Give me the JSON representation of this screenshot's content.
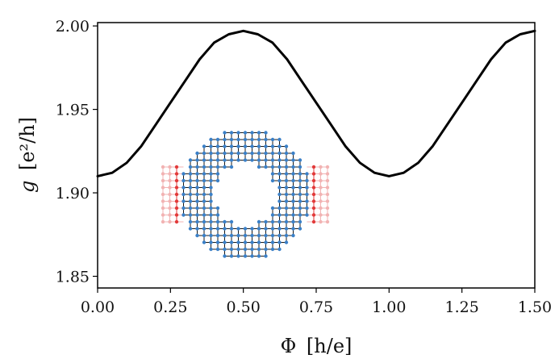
{
  "chart_data": {
    "type": "line",
    "title": "",
    "xlabel_symbol": "Φ",
    "xlabel_unit": "[h/e]",
    "ylabel_symbol": "g",
    "ylabel_unit": "[e²/h]",
    "xlim": [
      0.0,
      1.5
    ],
    "ylim": [
      1.843,
      2.002
    ],
    "xticks": [
      0.0,
      0.25,
      0.5,
      0.75,
      1.0,
      1.25,
      1.5
    ],
    "xtick_labels": [
      "0.00",
      "0.25",
      "0.50",
      "0.75",
      "1.00",
      "1.25",
      "1.50"
    ],
    "yticks": [
      1.85,
      1.9,
      1.95,
      2.0
    ],
    "ytick_labels": [
      "1.85",
      "1.90",
      "1.95",
      "2.00"
    ],
    "grid": false,
    "series": [
      {
        "name": "g",
        "color": "#000000",
        "x": [
          0.0,
          0.05,
          0.1,
          0.15,
          0.2,
          0.25,
          0.3,
          0.35,
          0.4,
          0.45,
          0.5,
          0.55,
          0.6,
          0.65,
          0.7,
          0.75,
          0.8,
          0.85,
          0.9,
          0.95,
          1.0,
          1.05,
          1.1,
          1.15,
          1.2,
          1.25,
          1.3,
          1.35,
          1.4,
          1.45,
          1.5
        ],
        "y": [
          1.91,
          1.912,
          1.918,
          1.928,
          1.941,
          1.954,
          1.967,
          1.98,
          1.99,
          1.995,
          1.997,
          1.995,
          1.99,
          1.98,
          1.967,
          1.954,
          1.941,
          1.928,
          1.918,
          1.912,
          1.91,
          1.912,
          1.918,
          1.928,
          1.941,
          1.954,
          1.967,
          1.98,
          1.99,
          1.995,
          1.997
        ]
      }
    ],
    "inset": {
      "description": "Aharonov-Bohm ring lattice with leads",
      "lattice_color": "#3a80c8",
      "lead_color": "#e23a3a",
      "lead_fade_color": "#f2b3b3"
    }
  }
}
